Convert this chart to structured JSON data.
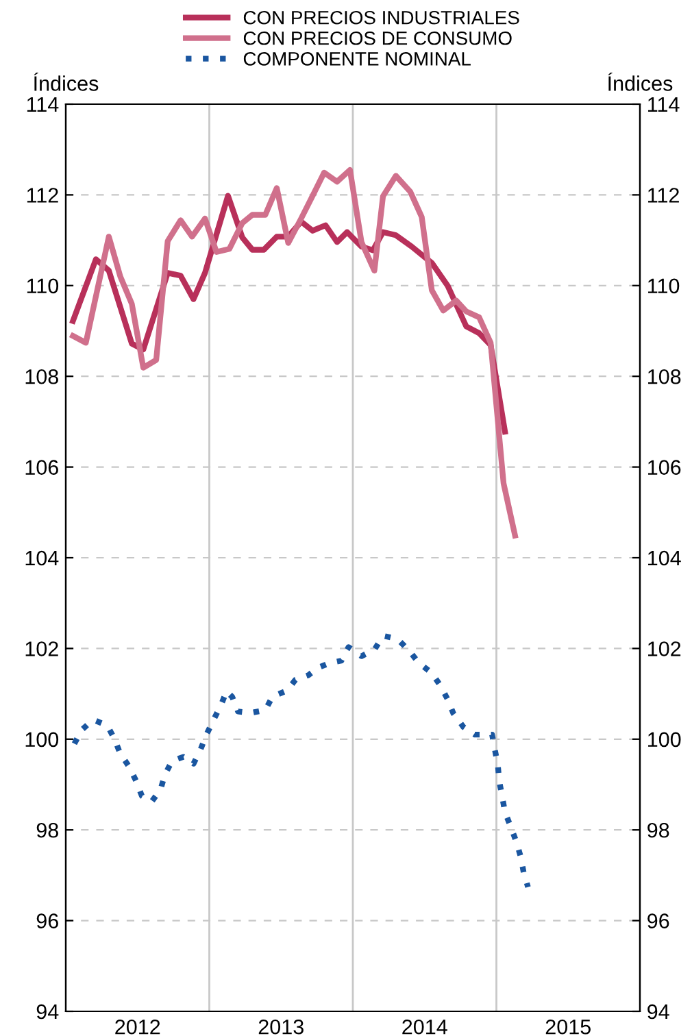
{
  "chart_data": {
    "type": "line",
    "ylabel": "Índices",
    "y2label": "Índices",
    "xlim": [
      2012,
      2016
    ],
    "xticks": [
      {
        "value": 2012.5,
        "label": "2012"
      },
      {
        "value": 2013.5,
        "label": "2013"
      },
      {
        "value": 2014.5,
        "label": "2014"
      },
      {
        "value": 2015.5,
        "label": "2015"
      }
    ],
    "ylim": [
      94,
      114
    ],
    "yticks": [
      94,
      96,
      98,
      100,
      102,
      104,
      106,
      108,
      110,
      112,
      114
    ],
    "y2lim": [
      94,
      114
    ],
    "y2ticks": [
      94,
      96,
      98,
      100,
      102,
      104,
      106,
      108,
      110,
      112,
      114
    ],
    "grid": "y",
    "legend": "top",
    "ref_lines": [
      {
        "axis": "x",
        "value": 2013,
        "color": "#c8c8c8"
      },
      {
        "axis": "x",
        "value": 2014,
        "color": "#c8c8c8"
      },
      {
        "axis": "x",
        "value": 2015,
        "color": "#c8c8c8"
      }
    ],
    "series": [
      {
        "name": "CON PRECIOS INDUSTRIALES",
        "color": "#b8305a",
        "line_style": "solid",
        "x": [
          2012.05,
          2012.21,
          2012.3,
          2012.46,
          2012.54,
          2012.71,
          2012.8,
          2012.89,
          2012.97,
          2013.13,
          2013.23,
          2013.3,
          2013.38,
          2013.47,
          2013.55,
          2013.64,
          2013.72,
          2013.81,
          2013.89,
          2013.96,
          2014.06,
          2014.14,
          2014.21,
          2014.3,
          2014.41,
          2014.55,
          2014.66,
          2014.79,
          2014.88,
          2014.96,
          2015.06
        ],
        "values": [
          109.22,
          110.58,
          110.33,
          108.72,
          108.59,
          110.28,
          110.22,
          109.7,
          110.28,
          111.98,
          111.06,
          110.79,
          110.79,
          111.08,
          111.08,
          111.41,
          111.21,
          111.33,
          110.96,
          111.18,
          110.86,
          110.78,
          111.18,
          111.11,
          110.86,
          110.5,
          110.0,
          109.1,
          108.95,
          108.69,
          106.78
        ]
      },
      {
        "name": "CON PRECIOS DE CONSUMO",
        "color": "#d0708c",
        "line_style": "solid",
        "x": [
          2012.05,
          2012.14,
          2012.3,
          2012.38,
          2012.46,
          2012.54,
          2012.63,
          2012.71,
          2012.8,
          2012.88,
          2012.97,
          2013.05,
          2013.14,
          2013.23,
          2013.3,
          2013.39,
          2013.47,
          2013.55,
          2013.64,
          2013.72,
          2013.8,
          2013.89,
          2013.98,
          2014.06,
          2014.15,
          2014.21,
          2014.3,
          2014.4,
          2014.48,
          2014.55,
          2014.63,
          2014.72,
          2014.79,
          2014.88,
          2014.96,
          2015.05,
          2015.13
        ],
        "values": [
          108.89,
          108.74,
          111.08,
          110.2,
          109.6,
          108.19,
          108.36,
          110.98,
          111.44,
          111.08,
          111.48,
          110.74,
          110.81,
          111.38,
          111.56,
          111.56,
          112.15,
          110.94,
          111.48,
          111.98,
          112.49,
          112.29,
          112.55,
          110.96,
          110.33,
          111.97,
          112.42,
          112.07,
          111.51,
          109.9,
          109.45,
          109.67,
          109.43,
          109.3,
          108.74,
          105.64,
          104.49
        ]
      },
      {
        "name": "COMPONENTE NOMINAL",
        "color": "#1a56a0",
        "line_style": "dotted",
        "x": [
          2012.06,
          2012.11,
          2012.19,
          2012.29,
          2012.34,
          2012.38,
          2012.44,
          2012.49,
          2012.53,
          2012.6,
          2012.66,
          2012.69,
          2012.74,
          2012.82,
          2012.89,
          2012.94,
          2012.98,
          2013.03,
          2013.08,
          2013.12,
          2013.16,
          2013.2,
          2013.29,
          2013.39,
          2013.44,
          2013.54,
          2013.6,
          2013.69,
          2013.76,
          2013.84,
          2013.92,
          2013.97,
          2014.06,
          2014.15,
          2014.21,
          2014.31,
          2014.39,
          2014.46,
          2014.55,
          2014.61,
          2014.66,
          2014.7,
          2014.77,
          2014.85,
          2014.97,
          2014.99,
          2015.01,
          2015.02,
          2015.04,
          2015.06,
          2015.1,
          2015.14,
          2015.17,
          2015.19,
          2015.22
        ],
        "values": [
          99.9,
          100.2,
          100.43,
          100.3,
          100.0,
          99.68,
          99.4,
          99.08,
          98.75,
          98.63,
          98.89,
          99.21,
          99.52,
          99.61,
          99.46,
          99.78,
          100.1,
          100.43,
          100.74,
          101.06,
          100.93,
          100.61,
          100.58,
          100.64,
          100.94,
          101.07,
          101.31,
          101.41,
          101.58,
          101.68,
          101.73,
          102.03,
          101.83,
          101.97,
          102.28,
          102.21,
          101.96,
          101.68,
          101.46,
          101.18,
          100.88,
          100.57,
          100.27,
          100.1,
          100.1,
          99.76,
          99.43,
          99.08,
          98.74,
          98.39,
          98.07,
          97.73,
          97.4,
          97.06,
          96.74
        ]
      }
    ]
  }
}
